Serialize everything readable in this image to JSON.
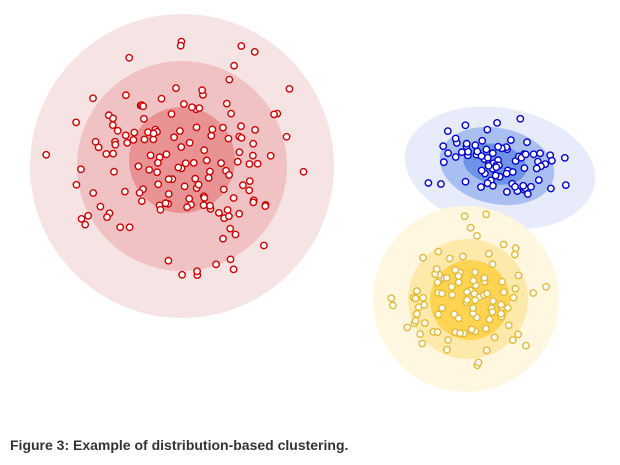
{
  "caption": "Figure 3: Example of distribution-based clustering.",
  "clusters": [
    {
      "name": "red-cluster",
      "ring_colors": [
        "#f6e3e3",
        "#f1c2c3",
        "#e89294"
      ],
      "point_color": "#cc0000",
      "point_count": 150
    },
    {
      "name": "blue-cluster",
      "ring_colors": [
        "#e7ebfa",
        "#a9bff2",
        "#6d94e6"
      ],
      "point_color": "#0000cc",
      "point_count": 80
    },
    {
      "name": "yellow-cluster",
      "ring_colors": [
        "#fff7df",
        "#fde9a9",
        "#ffd452"
      ],
      "point_color": "#e2ba38",
      "point_count": 100
    }
  ]
}
